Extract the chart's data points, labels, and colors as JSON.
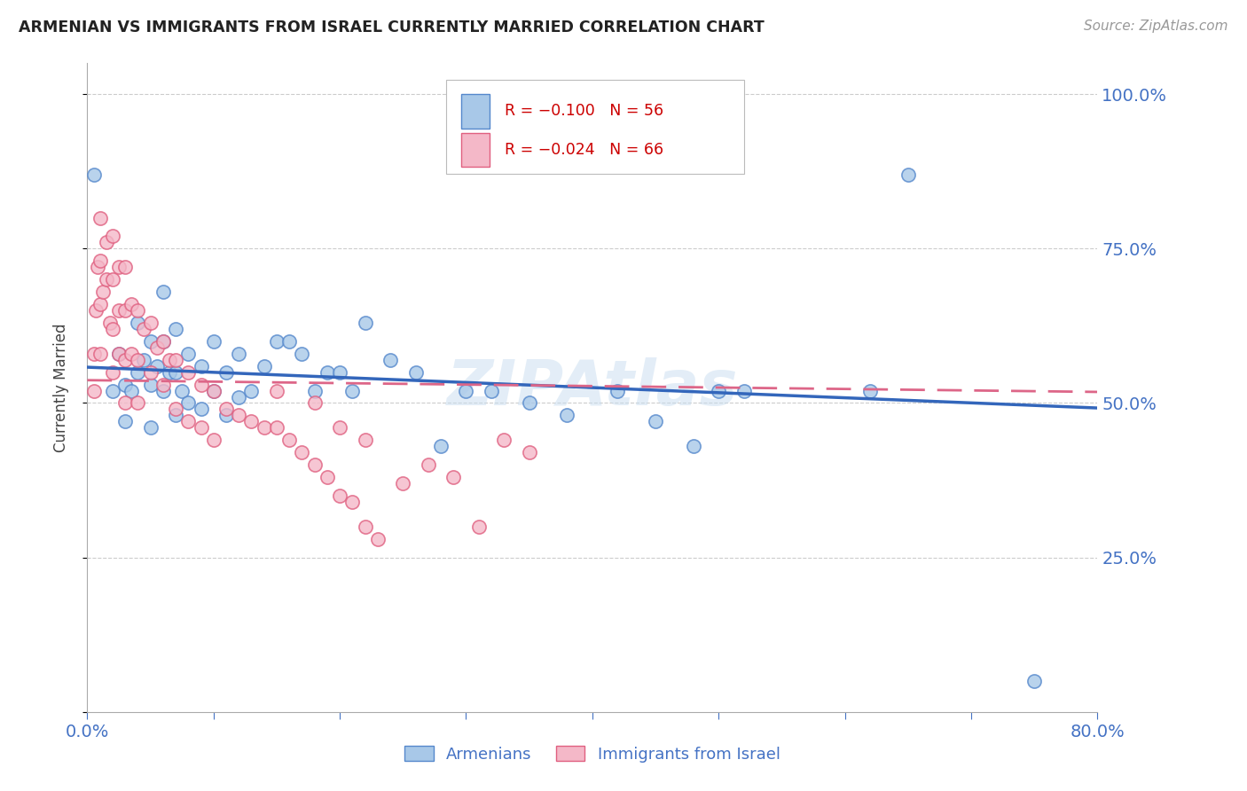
{
  "title": "ARMENIAN VS IMMIGRANTS FROM ISRAEL CURRENTLY MARRIED CORRELATION CHART",
  "source": "Source: ZipAtlas.com",
  "ylabel": "Currently Married",
  "x_min": 0.0,
  "x_max": 0.8,
  "y_min": 0.0,
  "y_max": 1.05,
  "legend_label1": "Armenians",
  "legend_label2": "Immigrants from Israel",
  "blue_face_color": "#a8c8e8",
  "pink_face_color": "#f4b8c8",
  "blue_edge_color": "#5588cc",
  "pink_edge_color": "#e06080",
  "blue_line_color": "#3366bb",
  "pink_line_color": "#dd6688",
  "watermark_text": "ZIPAtlas",
  "blue_line_y0": 0.558,
  "blue_line_y1": 0.492,
  "pink_line_y0": 0.537,
  "pink_line_y1": 0.518,
  "blue_scatter_x": [
    0.005,
    0.02,
    0.025,
    0.03,
    0.03,
    0.035,
    0.04,
    0.04,
    0.045,
    0.05,
    0.05,
    0.05,
    0.055,
    0.06,
    0.06,
    0.06,
    0.065,
    0.07,
    0.07,
    0.07,
    0.075,
    0.08,
    0.08,
    0.09,
    0.09,
    0.1,
    0.1,
    0.11,
    0.11,
    0.12,
    0.12,
    0.13,
    0.14,
    0.15,
    0.16,
    0.17,
    0.18,
    0.19,
    0.2,
    0.21,
    0.22,
    0.24,
    0.26,
    0.28,
    0.3,
    0.32,
    0.35,
    0.38,
    0.42,
    0.45,
    0.48,
    0.5,
    0.52,
    0.62,
    0.65,
    0.75
  ],
  "blue_scatter_y": [
    0.87,
    0.52,
    0.58,
    0.53,
    0.47,
    0.52,
    0.63,
    0.55,
    0.57,
    0.6,
    0.53,
    0.46,
    0.56,
    0.68,
    0.6,
    0.52,
    0.55,
    0.62,
    0.55,
    0.48,
    0.52,
    0.58,
    0.5,
    0.56,
    0.49,
    0.6,
    0.52,
    0.55,
    0.48,
    0.58,
    0.51,
    0.52,
    0.56,
    0.6,
    0.6,
    0.58,
    0.52,
    0.55,
    0.55,
    0.52,
    0.63,
    0.57,
    0.55,
    0.43,
    0.52,
    0.52,
    0.5,
    0.48,
    0.52,
    0.47,
    0.43,
    0.52,
    0.52,
    0.52,
    0.87,
    0.05
  ],
  "pink_scatter_x": [
    0.005,
    0.005,
    0.007,
    0.008,
    0.01,
    0.01,
    0.01,
    0.01,
    0.012,
    0.015,
    0.015,
    0.018,
    0.02,
    0.02,
    0.02,
    0.02,
    0.025,
    0.025,
    0.025,
    0.03,
    0.03,
    0.03,
    0.03,
    0.035,
    0.035,
    0.04,
    0.04,
    0.04,
    0.045,
    0.05,
    0.05,
    0.055,
    0.06,
    0.06,
    0.065,
    0.07,
    0.07,
    0.08,
    0.08,
    0.09,
    0.09,
    0.1,
    0.1,
    0.11,
    0.12,
    0.13,
    0.14,
    0.15,
    0.16,
    0.17,
    0.18,
    0.19,
    0.2,
    0.21,
    0.22,
    0.23,
    0.25,
    0.27,
    0.29,
    0.31,
    0.33,
    0.35,
    0.15,
    0.18,
    0.2,
    0.22
  ],
  "pink_scatter_y": [
    0.58,
    0.52,
    0.65,
    0.72,
    0.8,
    0.73,
    0.66,
    0.58,
    0.68,
    0.76,
    0.7,
    0.63,
    0.77,
    0.7,
    0.62,
    0.55,
    0.72,
    0.65,
    0.58,
    0.72,
    0.65,
    0.57,
    0.5,
    0.66,
    0.58,
    0.65,
    0.57,
    0.5,
    0.62,
    0.63,
    0.55,
    0.59,
    0.6,
    0.53,
    0.57,
    0.57,
    0.49,
    0.55,
    0.47,
    0.53,
    0.46,
    0.52,
    0.44,
    0.49,
    0.48,
    0.47,
    0.46,
    0.46,
    0.44,
    0.42,
    0.4,
    0.38,
    0.35,
    0.34,
    0.3,
    0.28,
    0.37,
    0.4,
    0.38,
    0.3,
    0.44,
    0.42,
    0.52,
    0.5,
    0.46,
    0.44
  ]
}
